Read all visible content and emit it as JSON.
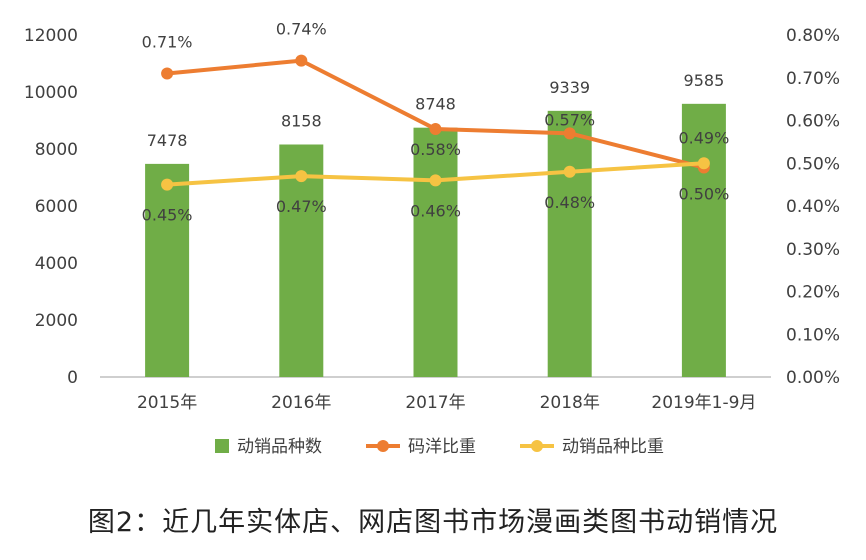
{
  "colors": {
    "bar": "#70AD47",
    "line_code": "#ED7D31",
    "line_ratio": "#F6C343",
    "axis": "#BFBFBF",
    "text": "#404040"
  },
  "caption": "图2：近几年实体店、网店图书市场漫画类图书动销情况",
  "chart_data": {
    "type": "bar",
    "categories": [
      "2015年",
      "2016年",
      "2017年",
      "2018年",
      "2019年1-9月"
    ],
    "series": [
      {
        "name": "动销品种数",
        "type": "bar",
        "axis": "left",
        "values": [
          7478,
          8158,
          8748,
          9339,
          9585
        ],
        "labels": [
          "7478",
          "8158",
          "8748",
          "9339",
          "9585"
        ]
      },
      {
        "name": "码洋比重",
        "type": "line",
        "axis": "right",
        "values": [
          0.71,
          0.74,
          0.58,
          0.57,
          0.49
        ],
        "labels": [
          "0.71%",
          "0.74%",
          "0.58%",
          "0.57%",
          "0.49%"
        ]
      },
      {
        "name": "动销品种比重",
        "type": "line",
        "axis": "right",
        "values": [
          0.45,
          0.47,
          0.46,
          0.48,
          0.5
        ],
        "labels": [
          "0.45%",
          "0.47%",
          "0.46%",
          "0.48%",
          "0.50%"
        ]
      }
    ],
    "y_left": {
      "min": 0,
      "max": 12000,
      "ticks": [
        "0",
        "2000",
        "4000",
        "6000",
        "8000",
        "10000",
        "12000"
      ]
    },
    "y_right": {
      "min": 0,
      "max": 0.8,
      "ticks": [
        "0.00%",
        "0.10%",
        "0.20%",
        "0.30%",
        "0.40%",
        "0.50%",
        "0.60%",
        "0.70%",
        "0.80%"
      ]
    },
    "grid": false,
    "legend": "bottom"
  }
}
